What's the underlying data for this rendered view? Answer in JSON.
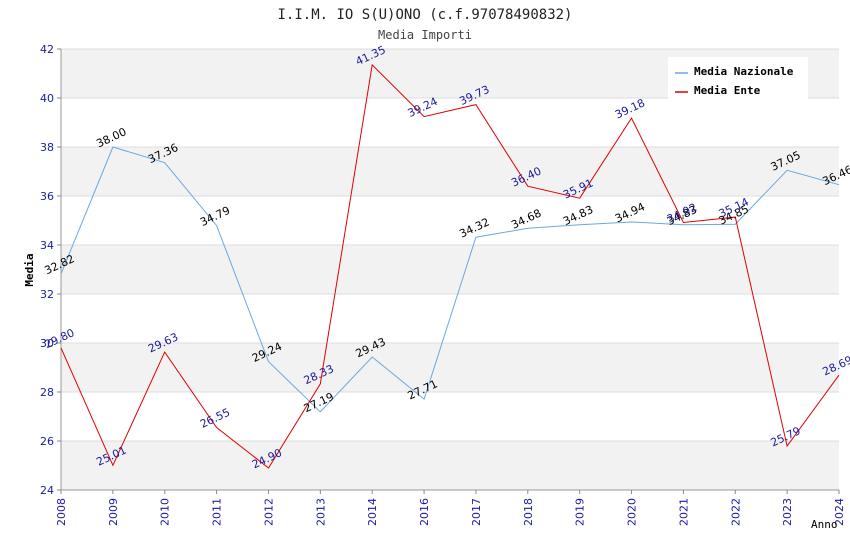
{
  "chart_data": {
    "type": "line",
    "title": "I.I.M. IO S(U)ONO (c.f.97078490832)",
    "subtitle": "Media Importi",
    "xlabel": "Anno",
    "ylabel": "Media",
    "ylim": [
      24,
      42
    ],
    "yticks": [
      "24",
      "26",
      "28",
      "30",
      "32",
      "34",
      "36",
      "38",
      "40",
      "42"
    ],
    "categories": [
      "2008",
      "2009",
      "2010",
      "2011",
      "2012",
      "2013",
      "2014",
      "2016",
      "2017",
      "2018",
      "2019",
      "2020",
      "2021",
      "2022",
      "2023",
      "2024"
    ],
    "grid": "horizontal, alternating bands",
    "legend_position": "top-right",
    "series": [
      {
        "name": "Media Nazionale",
        "color": "#6aa8e0",
        "label_color": "#000000",
        "values": [
          32.82,
          38.0,
          37.36,
          34.79,
          29.24,
          27.19,
          29.43,
          27.71,
          34.32,
          34.68,
          34.83,
          34.94,
          34.83,
          34.85,
          37.05,
          36.46
        ],
        "labels": [
          "32.82",
          "38.00",
          "37.36",
          "34.79",
          "29.24",
          "27.19",
          "29.43",
          "27.71",
          "34.32",
          "34.68",
          "34.83",
          "34.94",
          "34.83",
          "34.85",
          "37.05",
          "36.46"
        ]
      },
      {
        "name": "Media Ente",
        "color": "#e00000",
        "label_color": "#1a1a9c",
        "values": [
          29.8,
          25.01,
          29.63,
          26.55,
          24.9,
          28.33,
          41.35,
          39.24,
          39.73,
          36.4,
          35.91,
          39.18,
          34.92,
          35.14,
          25.79,
          28.69
        ],
        "labels": [
          "29.80",
          "25.01",
          "29.63",
          "26.55",
          "24.90",
          "28.33",
          "41.35",
          "39.24",
          "39.73",
          "36.40",
          "35.91",
          "39.18",
          "34.92",
          "35.14",
          "25.79",
          "28.69"
        ]
      }
    ]
  }
}
